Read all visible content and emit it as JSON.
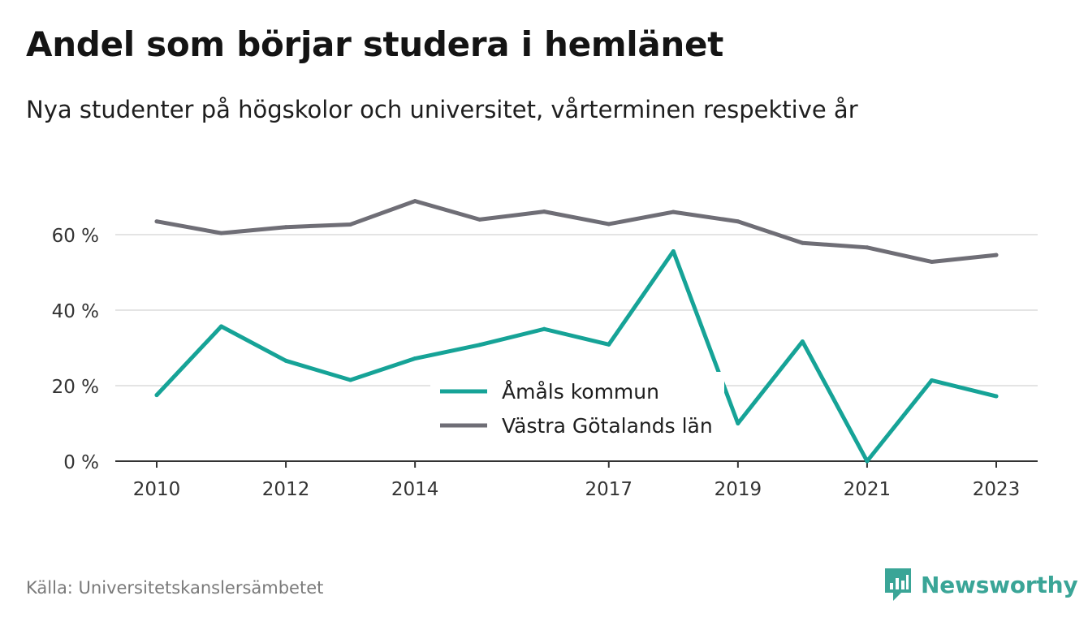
{
  "header": {
    "title": "Andel som börjar studera i hemlänet",
    "subtitle": "Nya studenter på högskolor och universitet, vårterminen respektive år"
  },
  "chart_data": {
    "type": "line",
    "title": "Andel som börjar studera i hemlänet",
    "subtitle": "Nya studenter på högskolor och universitet, vårterminen respektive år",
    "xlabel": "",
    "ylabel": "",
    "x": [
      2010,
      2011,
      2012,
      2013,
      2014,
      2015,
      2016,
      2017,
      2018,
      2019,
      2020,
      2021,
      2022,
      2023
    ],
    "x_tick_labels": [
      "2010",
      "2012",
      "2014",
      "2017",
      "2019",
      "2021",
      "2023"
    ],
    "x_ticks": [
      2010,
      2012,
      2014,
      2017,
      2019,
      2021,
      2023
    ],
    "y_ticks": [
      0,
      20,
      40,
      60
    ],
    "y_tick_labels": [
      "0 %",
      "20 %",
      "40 %",
      "60 %"
    ],
    "ylim": [
      0,
      60
    ],
    "xlim": [
      2010,
      2023
    ],
    "grid": true,
    "legend_position": "bottom-center",
    "series": [
      {
        "name": "Åmåls kommun",
        "color": "#16a397",
        "values": [
          17.5,
          35.7,
          26.6,
          21.5,
          27.2,
          30.8,
          35.0,
          30.9,
          55.6,
          10.0,
          31.7,
          0.0,
          21.4,
          17.2
        ]
      },
      {
        "name": "Västra Götalands län",
        "color": "#6f6e76",
        "values": [
          63.5,
          60.4,
          62.0,
          62.7,
          68.9,
          64.0,
          66.1,
          62.8,
          66.0,
          63.5,
          57.8,
          56.6,
          52.8,
          54.6
        ]
      }
    ]
  },
  "footer": {
    "source": "Källa: Universitetskanslersämbetet",
    "brand": "Newsworthy",
    "brand_icon": "newsworthy-logo-icon",
    "brand_color": "#3aa597"
  }
}
